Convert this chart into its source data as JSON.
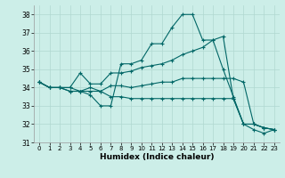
{
  "title": "",
  "xlabel": "Humidex (Indice chaleur)",
  "background_color": "#cceee8",
  "grid_color": "#b0d8d0",
  "line_color": "#006666",
  "xlim": [
    -0.5,
    23.5
  ],
  "ylim": [
    31,
    38.5
  ],
  "yticks": [
    31,
    32,
    33,
    34,
    35,
    36,
    37,
    38
  ],
  "xticks": [
    0,
    1,
    2,
    3,
    4,
    5,
    6,
    7,
    8,
    9,
    10,
    11,
    12,
    13,
    14,
    15,
    16,
    17,
    18,
    19,
    20,
    21,
    22,
    23
  ],
  "series": [
    [
      34.3,
      34.0,
      34.0,
      34.0,
      33.8,
      33.6,
      33.0,
      33.0,
      35.3,
      35.3,
      35.5,
      36.4,
      36.4,
      37.3,
      38.0,
      38.0,
      36.6,
      36.6,
      35.0,
      33.5,
      32.0,
      31.7,
      31.5,
      31.7
    ],
    [
      34.3,
      34.0,
      34.0,
      34.0,
      34.8,
      34.2,
      34.2,
      34.8,
      34.8,
      34.9,
      35.1,
      35.2,
      35.3,
      35.5,
      35.8,
      36.0,
      36.2,
      36.6,
      36.8,
      33.4,
      32.0,
      32.0,
      31.8,
      31.7
    ],
    [
      34.3,
      34.0,
      34.0,
      33.8,
      33.8,
      34.0,
      33.8,
      34.1,
      34.1,
      34.0,
      34.1,
      34.2,
      34.3,
      34.3,
      34.5,
      34.5,
      34.5,
      34.5,
      34.5,
      34.5,
      34.3,
      32.0,
      31.8,
      31.7
    ],
    [
      34.3,
      34.0,
      34.0,
      33.8,
      33.8,
      33.8,
      33.8,
      33.5,
      33.5,
      33.4,
      33.4,
      33.4,
      33.4,
      33.4,
      33.4,
      33.4,
      33.4,
      33.4,
      33.4,
      33.4,
      32.0,
      32.0,
      31.8,
      31.7
    ]
  ]
}
